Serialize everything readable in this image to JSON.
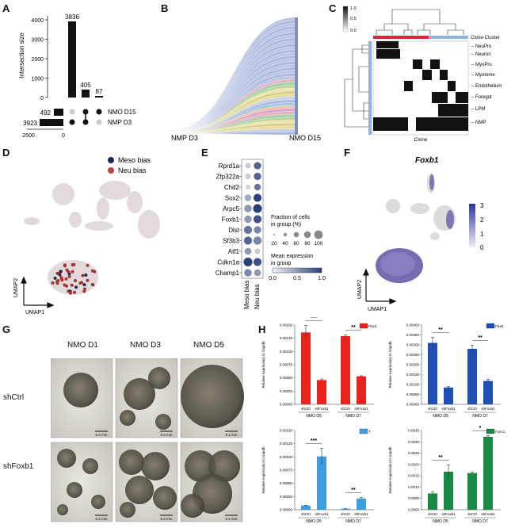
{
  "panel_labels": {
    "A": "A",
    "B": "B",
    "C": "C",
    "D": "D",
    "E": "E",
    "F": "F",
    "G": "G",
    "H": "H"
  },
  "panelA": {
    "ylabel": "Intersection size",
    "bar_values": [
      "3836",
      "405",
      "87"
    ],
    "set_sizes": [
      "492",
      "3923"
    ],
    "set_names": [
      "NMO D15",
      "NMP D3"
    ],
    "x_ticks": [
      "2500",
      "0"
    ],
    "y_ticks": [
      "0",
      "1000",
      "2000",
      "3000",
      "4000"
    ]
  },
  "panelB": {
    "left_label": "NMP D3",
    "right_label": "NMO D15"
  },
  "panelC": {
    "scale_ticks": [
      "1.0",
      "0.5",
      "0.0"
    ],
    "clone_cluster": "Clone-Cluster",
    "rows": [
      "NeuPro",
      "Neuron",
      "MyoPro",
      "Myotome",
      "Endothelium",
      "Foregut",
      "LPM",
      "NMP"
    ],
    "xlabel": "Clone"
  },
  "panelD": {
    "legend": [
      "Meso bias",
      "Neu bias"
    ],
    "axis_y": "UMAP2",
    "axis_x": "UMAP1"
  },
  "panelE": {
    "genes": [
      "Rprd1a",
      "Zfp322a",
      "Chd2",
      "Sox2",
      "Arpc5",
      "Foxb1",
      "Dlst",
      "Sf3b3",
      "Atf1",
      "Cdkn1a",
      "Champ1"
    ],
    "columns": [
      "Meso bias",
      "Neu bias"
    ],
    "frac_title": "Fraction of cells\nin group (%)",
    "frac_ticks": [
      "20",
      "40",
      "60",
      "80",
      "100"
    ],
    "mean_title": "Mean expression\nin group",
    "mean_ticks": [
      "0.0",
      "0.5",
      "1.0"
    ]
  },
  "panelF": {
    "title": "Foxb1",
    "scale_ticks": [
      "3",
      "2",
      "1",
      "0"
    ],
    "axis_y": "UMAP2",
    "axis_x": "UMAP1"
  },
  "panelG": {
    "columns": [
      "NMO D1",
      "NMO D3",
      "NMO D5"
    ],
    "rows": [
      "shCtrl",
      "shFoxb1"
    ],
    "scale_bar": "0.2 mm"
  },
  "panelH": {
    "ylabel": "Relative expression to Gapdh",
    "conditions": [
      "shCtrl",
      "shFoxb1",
      "shCtrl",
      "shFoxb1"
    ],
    "groups": [
      "NMO D5",
      "NMO D7"
    ],
    "charts": [
      {
        "legend": "Pax3",
        "color": "#e8231e",
        "sig": [
          "***",
          "**"
        ]
      },
      {
        "legend": "Pax6",
        "color": "#1f4eb4",
        "sig": [
          "**",
          "**"
        ]
      },
      {
        "legend": "T",
        "color": "#3a9ee0",
        "sig": [
          "***",
          "**"
        ]
      },
      {
        "legend": "Foxc1",
        "color": "#188a45",
        "sig": [
          "**",
          "*"
        ]
      }
    ]
  },
  "chart_data": [
    {
      "type": "bar",
      "title": "",
      "categories": [
        "shCtrl NMO D5",
        "shFoxb1 NMO D5",
        "shCtrl NMO D7",
        "shFoxb1 NMO D7"
      ],
      "series": [
        {
          "name": "Pax3",
          "values": [
            0.00136,
            0.00046,
            0.00129,
            0.00053
          ],
          "err": [
            0.00013,
            2e-05,
            2e-05,
            1e-05
          ]
        }
      ],
      "ylim": [
        0,
        0.0015
      ],
      "yticks": [
        "0.00000",
        "0.00025",
        "0.00050",
        "0.00075",
        "0.00100",
        "0.00125",
        "0.00150"
      ]
    },
    {
      "type": "bar",
      "title": "",
      "categories": [
        "shCtrl NMO D5",
        "shFoxb1 NMO D5",
        "shCtrl NMO D7",
        "shFoxb1 NMO D7"
      ],
      "series": [
        {
          "name": "Pax6",
          "values": [
            0.0031,
            0.00085,
            0.0028,
            0.00118
          ],
          "err": [
            0.00028,
            4e-05,
            0.00018,
            8e-05
          ]
        }
      ],
      "ylim": [
        0,
        0.004
      ],
      "yticks": [
        "0.00000",
        "0.00050",
        "0.00100",
        "0.00150",
        "0.00200",
        "0.00250",
        "0.00300",
        "0.00350",
        "0.00400"
      ]
    },
    {
      "type": "bar",
      "title": "",
      "categories": [
        "shCtrl NMO D5",
        "shFoxb1 NMO D5",
        "shCtrl NMO D7",
        "shFoxb1 NMO D7"
      ],
      "series": [
        {
          "name": "T",
          "values": [
            8e-05,
            0.00101,
            2e-05,
            0.00021
          ],
          "err": [
            5e-06,
            0.00015,
            2e-06,
            2e-05
          ]
        }
      ],
      "ylim": [
        0,
        0.0015
      ],
      "yticks": [
        "0.00000",
        "0.00025",
        "0.00050",
        "0.00075",
        "0.00100",
        "0.00125",
        "0.00150"
      ]
    },
    {
      "type": "bar",
      "title": "",
      "categories": [
        "shCtrl NMO D5",
        "shFoxb1 NMO D5",
        "shCtrl NMO D7",
        "shFoxb1 NMO D7"
      ],
      "series": [
        {
          "name": "Foxc1",
          "values": [
            0.00072,
            0.00168,
            0.00162,
            0.00322
          ],
          "err": [
            8e-05,
            0.0003,
            5e-05,
            5e-05
          ]
        }
      ],
      "ylim": [
        0,
        0.0035
      ],
      "yticks": [
        "0.0000",
        "0.0005",
        "0.0010",
        "0.0015",
        "0.0020",
        "0.0025",
        "0.0030",
        "0.0035"
      ]
    }
  ]
}
